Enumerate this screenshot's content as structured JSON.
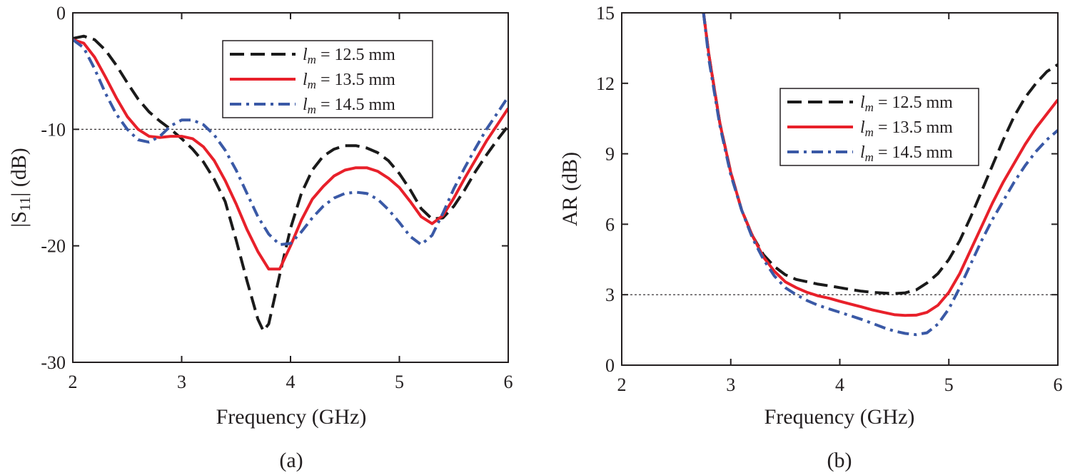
{
  "chart_data": [
    {
      "type": "line",
      "caption": "(a)",
      "xlabel": "Frequency (GHz)",
      "ylabel_main": "|S",
      "ylabel_sub": "11",
      "ylabel_end": "| (dB)",
      "xlim": [
        2,
        6
      ],
      "ylim": [
        -30,
        0
      ],
      "xticks": [
        "2",
        "3",
        "4",
        "5",
        "6"
      ],
      "yticks": [
        "0",
        "-10",
        "-20",
        "-30"
      ],
      "ytick_values": [
        0,
        -10,
        -20,
        -30
      ],
      "reference_line": -10,
      "legend_position": "top-right",
      "series": [
        {
          "name_var": "l",
          "name_sub": "m",
          "name_rest": " = 12.5 mm",
          "color": "#1a1a1a",
          "dash": "dashed",
          "x": [
            2.0,
            2.1,
            2.2,
            2.3,
            2.4,
            2.5,
            2.6,
            2.7,
            2.8,
            2.9,
            3.0,
            3.1,
            3.2,
            3.3,
            3.4,
            3.5,
            3.6,
            3.7,
            3.75,
            3.8,
            3.9,
            4.0,
            4.1,
            4.2,
            4.3,
            4.4,
            4.5,
            4.6,
            4.7,
            4.8,
            4.9,
            5.0,
            5.1,
            5.2,
            5.3,
            5.4,
            5.5,
            5.6,
            5.7,
            5.8,
            5.9,
            6.0
          ],
          "y": [
            -2.2,
            -2.0,
            -2.3,
            -3.2,
            -4.5,
            -6.0,
            -7.4,
            -8.5,
            -9.3,
            -10.0,
            -10.8,
            -11.7,
            -12.8,
            -14.3,
            -16.2,
            -19.5,
            -23.0,
            -26.3,
            -27.3,
            -26.7,
            -22.5,
            -18.5,
            -15.5,
            -13.5,
            -12.3,
            -11.7,
            -11.4,
            -11.4,
            -11.6,
            -12.0,
            -12.7,
            -13.8,
            -15.2,
            -16.8,
            -17.7,
            -17.6,
            -16.6,
            -15.2,
            -13.6,
            -12.2,
            -10.9,
            -9.7
          ]
        },
        {
          "name_var": "l",
          "name_sub": "m",
          "name_rest": " = 13.5 mm",
          "color": "#e8202a",
          "dash": "solid",
          "x": [
            2.0,
            2.1,
            2.2,
            2.3,
            2.4,
            2.5,
            2.6,
            2.7,
            2.8,
            2.9,
            3.0,
            3.1,
            3.2,
            3.3,
            3.4,
            3.5,
            3.6,
            3.7,
            3.8,
            3.9,
            4.0,
            4.1,
            4.2,
            4.3,
            4.4,
            4.5,
            4.6,
            4.7,
            4.8,
            4.9,
            5.0,
            5.1,
            5.2,
            5.3,
            5.4,
            5.5,
            5.6,
            5.7,
            5.8,
            5.9,
            6.0
          ],
          "y": [
            -2.3,
            -2.6,
            -3.8,
            -5.5,
            -7.3,
            -8.9,
            -10.0,
            -10.6,
            -10.7,
            -10.6,
            -10.6,
            -10.8,
            -11.5,
            -12.7,
            -14.4,
            -16.4,
            -18.6,
            -20.5,
            -22.0,
            -22.0,
            -20.0,
            -17.8,
            -16.0,
            -14.9,
            -14.0,
            -13.5,
            -13.3,
            -13.3,
            -13.6,
            -14.2,
            -15.0,
            -16.2,
            -17.5,
            -18.1,
            -17.4,
            -15.9,
            -14.2,
            -12.6,
            -11.0,
            -9.6,
            -8.2
          ]
        },
        {
          "name_var": "l",
          "name_sub": "m",
          "name_rest": " = 14.5 mm",
          "color": "#3a59a6",
          "dash": "dashdot",
          "x": [
            2.0,
            2.1,
            2.2,
            2.3,
            2.4,
            2.5,
            2.6,
            2.7,
            2.8,
            2.9,
            3.0,
            3.1,
            3.2,
            3.3,
            3.4,
            3.5,
            3.6,
            3.7,
            3.8,
            3.9,
            4.0,
            4.1,
            4.2,
            4.3,
            4.4,
            4.5,
            4.6,
            4.7,
            4.8,
            4.9,
            5.0,
            5.1,
            5.2,
            5.3,
            5.4,
            5.5,
            5.6,
            5.7,
            5.8,
            5.9,
            6.0
          ],
          "y": [
            -2.3,
            -3.0,
            -4.8,
            -6.9,
            -8.7,
            -10.0,
            -10.9,
            -11.1,
            -10.6,
            -9.7,
            -9.2,
            -9.2,
            -9.6,
            -10.5,
            -11.8,
            -13.5,
            -15.5,
            -17.5,
            -19.0,
            -19.9,
            -19.8,
            -18.8,
            -17.6,
            -16.6,
            -15.9,
            -15.5,
            -15.4,
            -15.5,
            -16.0,
            -16.9,
            -18.0,
            -19.2,
            -19.9,
            -19.1,
            -17.2,
            -15.1,
            -13.3,
            -11.6,
            -10.0,
            -8.6,
            -7.2
          ]
        }
      ]
    },
    {
      "type": "line",
      "caption": "(b)",
      "xlabel": "Frequency (GHz)",
      "ylabel_main": "AR (dB)",
      "xlim": [
        2,
        6
      ],
      "ylim": [
        0,
        15
      ],
      "xticks": [
        "2",
        "3",
        "4",
        "5",
        "6"
      ],
      "yticks": [
        "0",
        "3",
        "6",
        "9",
        "12",
        "15"
      ],
      "ytick_values": [
        0,
        3,
        6,
        9,
        12,
        15
      ],
      "reference_line": 3,
      "legend_position": "top-right",
      "series": [
        {
          "name_var": "l",
          "name_sub": "m",
          "name_rest": " = 12.5 mm",
          "color": "#1a1a1a",
          "dash": "dashed",
          "x": [
            2.75,
            2.8,
            2.9,
            3.0,
            3.1,
            3.2,
            3.3,
            3.4,
            3.5,
            3.6,
            3.7,
            3.8,
            3.9,
            4.0,
            4.1,
            4.2,
            4.3,
            4.4,
            4.5,
            4.6,
            4.7,
            4.8,
            4.9,
            5.0,
            5.1,
            5.2,
            5.3,
            5.4,
            5.5,
            5.6,
            5.7,
            5.8,
            5.9,
            6.0
          ],
          "y": [
            15.0,
            13.2,
            10.3,
            8.2,
            6.6,
            5.5,
            4.7,
            4.2,
            3.85,
            3.65,
            3.55,
            3.45,
            3.38,
            3.3,
            3.22,
            3.15,
            3.1,
            3.07,
            3.05,
            3.08,
            3.2,
            3.5,
            3.9,
            4.5,
            5.3,
            6.3,
            7.4,
            8.5,
            9.6,
            10.6,
            11.4,
            12.0,
            12.5,
            12.8
          ]
        },
        {
          "name_var": "l",
          "name_sub": "m",
          "name_rest": " = 13.5 mm",
          "color": "#e8202a",
          "dash": "solid",
          "x": [
            2.75,
            2.8,
            2.9,
            3.0,
            3.1,
            3.2,
            3.3,
            3.4,
            3.5,
            3.6,
            3.7,
            3.8,
            3.9,
            4.0,
            4.1,
            4.2,
            4.3,
            4.4,
            4.5,
            4.6,
            4.7,
            4.8,
            4.9,
            5.0,
            5.1,
            5.2,
            5.3,
            5.4,
            5.5,
            5.6,
            5.7,
            5.8,
            5.9,
            6.0
          ],
          "y": [
            15.0,
            13.2,
            10.3,
            8.2,
            6.6,
            5.5,
            4.6,
            4.0,
            3.55,
            3.3,
            3.1,
            2.95,
            2.85,
            2.72,
            2.6,
            2.48,
            2.35,
            2.25,
            2.15,
            2.12,
            2.13,
            2.25,
            2.55,
            3.1,
            3.9,
            4.9,
            5.9,
            6.9,
            7.8,
            8.6,
            9.4,
            10.1,
            10.7,
            11.3
          ]
        },
        {
          "name_var": "l",
          "name_sub": "m",
          "name_rest": " = 14.5 mm",
          "color": "#3a59a6",
          "dash": "dashdot",
          "x": [
            2.75,
            2.8,
            2.9,
            3.0,
            3.1,
            3.2,
            3.3,
            3.4,
            3.5,
            3.6,
            3.7,
            3.8,
            3.9,
            4.0,
            4.1,
            4.2,
            4.3,
            4.4,
            4.5,
            4.6,
            4.7,
            4.8,
            4.9,
            5.0,
            5.1,
            5.2,
            5.3,
            5.4,
            5.5,
            5.6,
            5.7,
            5.8,
            5.9,
            6.0
          ],
          "y": [
            15.0,
            13.0,
            10.2,
            8.1,
            6.6,
            5.4,
            4.5,
            3.8,
            3.3,
            3.0,
            2.75,
            2.55,
            2.4,
            2.25,
            2.1,
            1.95,
            1.78,
            1.6,
            1.45,
            1.35,
            1.3,
            1.38,
            1.75,
            2.4,
            3.3,
            4.3,
            5.3,
            6.2,
            7.0,
            7.8,
            8.5,
            9.1,
            9.6,
            10.0
          ]
        }
      ]
    }
  ]
}
